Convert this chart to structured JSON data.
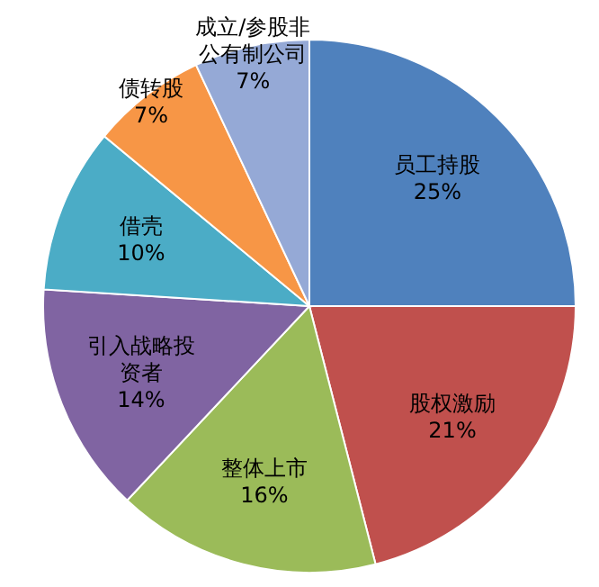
{
  "chart_data": {
    "type": "pie",
    "categories": [
      "员工持股",
      "股权激励",
      "整体上市",
      "引入战略投资者",
      "借壳",
      "债转股",
      "成立/参股非公有制公司"
    ],
    "values": [
      25,
      21,
      16,
      14,
      10,
      7,
      7
    ],
    "colors": [
      "#4f81bd",
      "#c0504d",
      "#9bbb59",
      "#8064a2",
      "#4bacc6",
      "#f79646",
      "#95a9d6"
    ],
    "value_labels": [
      "25%",
      "21%",
      "16%",
      "14%",
      "10%",
      "7%",
      "7%"
    ]
  }
}
